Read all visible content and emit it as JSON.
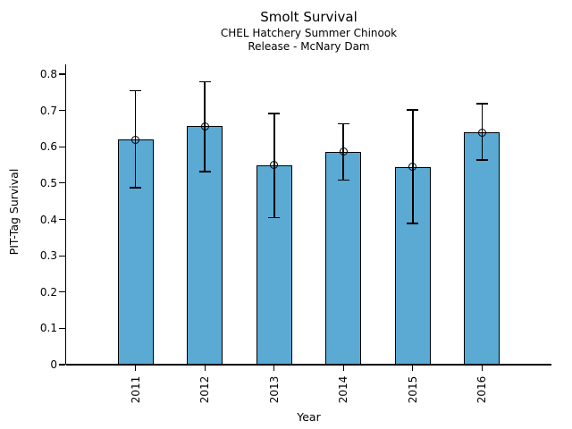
{
  "chart_data": {
    "type": "bar",
    "title": "Smolt Survival",
    "subtitle_lines": [
      "CHEL Hatchery Summer Chinook",
      "Release - McNary Dam"
    ],
    "xlabel": "Year",
    "ylabel": "PIT-Tag Survival",
    "categories": [
      "2011",
      "2012",
      "2013",
      "2014",
      "2015",
      "2016"
    ],
    "values": [
      0.62,
      0.657,
      0.549,
      0.586,
      0.545,
      0.639
    ],
    "error_high": [
      0.754,
      0.779,
      0.692,
      0.663,
      0.702,
      0.719
    ],
    "error_low": [
      0.488,
      0.532,
      0.405,
      0.508,
      0.389,
      0.564
    ],
    "ylim": [
      0,
      0.8
    ],
    "yticks": [
      0,
      0.1,
      0.2,
      0.3,
      0.4,
      0.5,
      0.6,
      0.7,
      0.8
    ],
    "ytick_labels": [
      "0",
      "0.1",
      "0.2",
      "0.3",
      "0.4",
      "0.5",
      "0.6",
      "0.7",
      "0.8"
    ],
    "bar_color": "#5aaad4",
    "bar_edge_color": "#000000",
    "error_color": "#000000",
    "marker": "open-circle",
    "grid": false,
    "legend": null
  }
}
